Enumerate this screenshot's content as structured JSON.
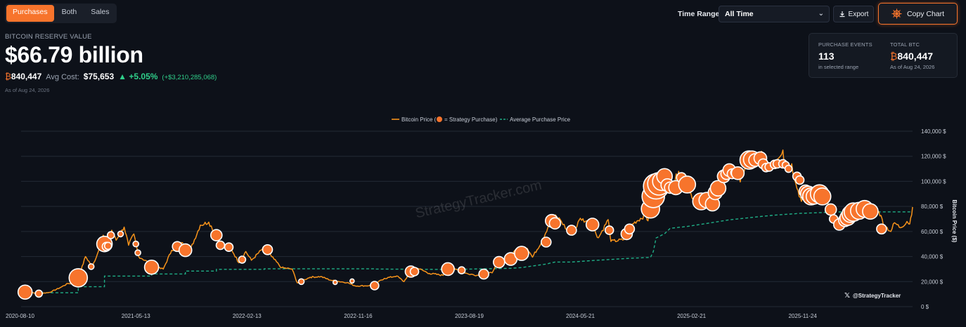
{
  "toggle": {
    "items": [
      "Purchases",
      "Both",
      "Sales"
    ],
    "active": "Purchases"
  },
  "reserve": {
    "label": "BITCOIN RESERVE VALUE",
    "value": "$66.79 billion",
    "btc_symbol": "₿",
    "btc": "840,447",
    "avg_cost_label": "Avg Cost:",
    "avg_cost": "$75,653",
    "change_pct": "▲ +5.05%",
    "change_abs": "(+$3,210,285,068)",
    "as_of": "As of Aug 24, 2026"
  },
  "controls": {
    "time_range_label": "Time Range:",
    "time_range_value": "All Time",
    "export_label": "Export",
    "copy_label": "Copy Chart"
  },
  "stats": {
    "events_label": "PURCHASE EVENTS",
    "events_value": "113",
    "events_sub": "in selected range",
    "total_label": "TOTAL BTC",
    "total_symbol": "₿",
    "total_value": "840,447",
    "total_sub": "As of Aug 24, 2026"
  },
  "colors": {
    "accent": "#f7742c",
    "price_line": "#f7931a",
    "avg_line": "#1fae86",
    "positive": "#2fcf8a"
  },
  "chart_data": {
    "type": "line",
    "legend_price": "Bitcoin Price (",
    "legend_price_tail": "= Strategy Purchase)",
    "legend_avg": "Average Purchase Price",
    "ylabel": "Bitcoin Price ($)",
    "watermark": "StrategyTracker.com",
    "handle": "@StrategyTracker",
    "ylim": [
      0,
      140000
    ],
    "y_ticks": [
      0,
      20000,
      40000,
      60000,
      80000,
      100000,
      120000,
      140000
    ],
    "y_tick_labels": [
      "0 $",
      "20,000 $",
      "40,000 $",
      "60,000 $",
      "80,000 $",
      "100,000 $",
      "120,000 $",
      "140,000 $"
    ],
    "x_range": [
      "2020-08-01",
      "2026-08-24"
    ],
    "x_ticks": [
      "2020-08-10",
      "2021-05-13",
      "2022-02-13",
      "2022-11-16",
      "2023-08-19",
      "2024-05-21",
      "2025-02-21",
      "2025-11-24"
    ],
    "grid": true,
    "price_series": [
      [
        "2020-08-01",
        11500
      ],
      [
        "2020-08-25",
        11200
      ],
      [
        "2020-09-15",
        10500
      ],
      [
        "2020-10-10",
        11300
      ],
      [
        "2020-11-05",
        15000
      ],
      [
        "2020-11-25",
        18500
      ],
      [
        "2020-12-10",
        18300
      ],
      [
        "2020-12-22",
        23500
      ],
      [
        "2021-01-08",
        40000
      ],
      [
        "2021-01-25",
        32000
      ],
      [
        "2021-02-10",
        45000
      ],
      [
        "2021-02-21",
        57000
      ],
      [
        "2021-03-05",
        48000
      ],
      [
        "2021-03-14",
        61000
      ],
      [
        "2021-03-25",
        53000
      ],
      [
        "2021-04-14",
        63500
      ],
      [
        "2021-04-25",
        49000
      ],
      [
        "2021-05-08",
        58000
      ],
      [
        "2021-05-20",
        40000
      ],
      [
        "2021-06-10",
        36000
      ],
      [
        "2021-06-22",
        32000
      ],
      [
        "2021-07-20",
        30000
      ],
      [
        "2021-08-10",
        45000
      ],
      [
        "2021-09-06",
        51000
      ],
      [
        "2021-09-21",
        42000
      ],
      [
        "2021-10-20",
        65000
      ],
      [
        "2021-11-10",
        67500
      ],
      [
        "2021-11-29",
        57000
      ],
      [
        "2021-12-15",
        48000
      ],
      [
        "2022-01-05",
        46000
      ],
      [
        "2022-01-24",
        35000
      ],
      [
        "2022-02-10",
        44000
      ],
      [
        "2022-02-24",
        37000
      ],
      [
        "2022-03-28",
        47500
      ],
      [
        "2022-04-15",
        40000
      ],
      [
        "2022-05-10",
        31000
      ],
      [
        "2022-06-05",
        30000
      ],
      [
        "2022-06-18",
        19000
      ],
      [
        "2022-07-20",
        23500
      ],
      [
        "2022-08-15",
        24000
      ],
      [
        "2022-09-10",
        21000
      ],
      [
        "2022-10-20",
        19200
      ],
      [
        "2022-11-09",
        16500
      ],
      [
        "2022-12-20",
        16800
      ],
      [
        "2023-01-20",
        22500
      ],
      [
        "2023-02-20",
        24500
      ],
      [
        "2023-03-10",
        20000
      ],
      [
        "2023-03-25",
        27500
      ],
      [
        "2023-04-14",
        30500
      ],
      [
        "2023-05-12",
        26500
      ],
      [
        "2023-06-15",
        25000
      ],
      [
        "2023-06-25",
        30500
      ],
      [
        "2023-07-15",
        30000
      ],
      [
        "2023-08-17",
        26000
      ],
      [
        "2023-09-11",
        25000
      ],
      [
        "2023-10-15",
        27000
      ],
      [
        "2023-10-25",
        34500
      ],
      [
        "2023-11-15",
        37000
      ],
      [
        "2023-12-08",
        44000
      ],
      [
        "2024-01-10",
        46500
      ],
      [
        "2024-01-23",
        39500
      ],
      [
        "2024-02-15",
        52000
      ],
      [
        "2024-03-14",
        73000
      ],
      [
        "2024-04-01",
        69500
      ],
      [
        "2024-04-17",
        61500
      ],
      [
        "2024-05-01",
        57000
      ],
      [
        "2024-05-21",
        70500
      ],
      [
        "2024-06-15",
        66000
      ],
      [
        "2024-07-05",
        55000
      ],
      [
        "2024-07-29",
        69500
      ],
      [
        "2024-08-05",
        52000
      ],
      [
        "2024-09-06",
        53500
      ],
      [
        "2024-09-27",
        66000
      ],
      [
        "2024-10-29",
        73000
      ],
      [
        "2024-11-05",
        68500
      ],
      [
        "2024-11-12",
        89000
      ],
      [
        "2024-11-22",
        99000
      ],
      [
        "2024-12-05",
        103000
      ],
      [
        "2024-12-17",
        107000
      ],
      [
        "2024-12-30",
        92000
      ],
      [
        "2025-01-20",
        108000
      ],
      [
        "2025-02-10",
        97000
      ],
      [
        "2025-03-01",
        84000
      ],
      [
        "2025-03-11",
        78500
      ],
      [
        "2025-03-25",
        87500
      ],
      [
        "2025-04-08",
        76500
      ],
      [
        "2025-04-25",
        94000
      ],
      [
        "2025-05-22",
        111000
      ],
      [
        "2025-06-10",
        108000
      ],
      [
        "2025-06-22",
        99500
      ],
      [
        "2025-07-14",
        122000
      ],
      [
        "2025-08-02",
        113000
      ],
      [
        "2025-08-14",
        124000
      ],
      [
        "2025-09-01",
        108000
      ],
      [
        "2025-09-18",
        117000
      ],
      [
        "2025-10-06",
        125000
      ],
      [
        "2025-10-11",
        111000
      ],
      [
        "2025-10-28",
        114000
      ],
      [
        "2025-11-04",
        101000
      ],
      [
        "2025-11-21",
        84000
      ],
      [
        "2025-12-10",
        92000
      ],
      [
        "2025-12-31",
        87500
      ],
      [
        "2026-01-15",
        96500
      ],
      [
        "2026-02-05",
        68000
      ],
      [
        "2026-02-20",
        67000
      ],
      [
        "2026-03-10",
        70000
      ],
      [
        "2026-04-05",
        74000
      ],
      [
        "2026-04-20",
        72000
      ],
      [
        "2026-05-10",
        80000
      ],
      [
        "2026-06-01",
        76000
      ],
      [
        "2026-06-15",
        65000
      ],
      [
        "2026-07-01",
        60000
      ],
      [
        "2026-07-10",
        67000
      ],
      [
        "2026-07-25",
        63000
      ],
      [
        "2026-08-10",
        68000
      ],
      [
        "2026-08-17",
        66000
      ],
      [
        "2026-08-24",
        79500
      ]
    ],
    "avg_purchase_price": [
      [
        "2020-08-01",
        11100
      ],
      [
        "2020-12-21",
        11100
      ],
      [
        "2020-12-21",
        15900
      ],
      [
        "2021-02-24",
        15900
      ],
      [
        "2021-02-24",
        24400
      ],
      [
        "2021-06-21",
        24400
      ],
      [
        "2021-06-21",
        26100
      ],
      [
        "2021-09-13",
        26100
      ],
      [
        "2021-09-13",
        28400
      ],
      [
        "2021-11-29",
        28400
      ],
      [
        "2021-11-29",
        29800
      ],
      [
        "2022-03-28",
        29800
      ],
      [
        "2022-03-28",
        30200
      ],
      [
        "2022-12-28",
        30200
      ],
      [
        "2022-12-28",
        30000
      ],
      [
        "2023-06-28",
        29700
      ],
      [
        "2023-11-30",
        30600
      ],
      [
        "2023-12-27",
        31200
      ],
      [
        "2024-02-26",
        34000
      ],
      [
        "2024-03-19",
        35600
      ],
      [
        "2024-04-30",
        35600
      ],
      [
        "2024-06-20",
        36800
      ],
      [
        "2024-09-20",
        38600
      ],
      [
        "2024-11-11",
        39300
      ],
      [
        "2024-11-18",
        43900
      ],
      [
        "2024-11-25",
        54800
      ],
      [
        "2024-12-16",
        58200
      ],
      [
        "2024-12-30",
        62500
      ],
      [
        "2025-02-10",
        64000
      ],
      [
        "2025-03-31",
        66400
      ],
      [
        "2025-05-26",
        69300
      ],
      [
        "2025-07-29",
        71500
      ],
      [
        "2025-09-15",
        73000
      ],
      [
        "2025-11-17",
        74400
      ],
      [
        "2026-01-12",
        75100
      ],
      [
        "2026-02-09",
        75600
      ],
      [
        "2026-08-24",
        75653
      ]
    ],
    "purchases": [
      [
        "2020-08-11",
        11600,
        10
      ],
      [
        "2020-09-14",
        10400,
        5
      ],
      [
        "2020-12-21",
        23000,
        13
      ],
      [
        "2021-01-22",
        32000,
        4
      ],
      [
        "2021-02-24",
        50000,
        11
      ],
      [
        "2021-03-01",
        48000,
        6
      ],
      [
        "2021-03-05",
        48500,
        5
      ],
      [
        "2021-03-12",
        57000,
        5
      ],
      [
        "2021-04-05",
        58000,
        4
      ],
      [
        "2021-05-13",
        50000,
        4
      ],
      [
        "2021-05-18",
        43000,
        4
      ],
      [
        "2021-06-21",
        31500,
        10
      ],
      [
        "2021-08-24",
        48000,
        7
      ],
      [
        "2021-09-13",
        45000,
        9
      ],
      [
        "2021-11-29",
        57000,
        8
      ],
      [
        "2021-12-09",
        49000,
        6
      ],
      [
        "2021-12-30",
        47500,
        6
      ],
      [
        "2022-02-01",
        37500,
        5
      ],
      [
        "2022-04-05",
        45500,
        7
      ],
      [
        "2022-06-28",
        20000,
        4
      ],
      [
        "2022-09-20",
        19400,
        3
      ],
      [
        "2022-11-01",
        20500,
        3
      ],
      [
        "2022-12-27",
        16800,
        6
      ],
      [
        "2023-03-27",
        28000,
        8
      ],
      [
        "2023-04-05",
        28000,
        6
      ],
      [
        "2023-06-27",
        30000,
        9
      ],
      [
        "2023-07-31",
        29000,
        5
      ],
      [
        "2023-09-24",
        26000,
        7
      ],
      [
        "2023-11-01",
        35500,
        8
      ],
      [
        "2023-11-30",
        38000,
        9
      ],
      [
        "2023-12-27",
        42500,
        10
      ],
      [
        "2024-02-26",
        51500,
        7
      ],
      [
        "2024-03-11",
        68500,
        9
      ],
      [
        "2024-03-19",
        66500,
        8
      ],
      [
        "2024-04-29",
        61000,
        7
      ],
      [
        "2024-06-20",
        65500,
        9
      ],
      [
        "2024-08-01",
        61000,
        6
      ],
      [
        "2024-09-13",
        58000,
        8
      ],
      [
        "2024-09-20",
        62000,
        7
      ],
      [
        "2024-11-11",
        78000,
        13
      ],
      [
        "2024-11-18",
        88000,
        16
      ],
      [
        "2024-11-25",
        96000,
        18
      ],
      [
        "2024-12-02",
        98000,
        16
      ],
      [
        "2024-12-09",
        100000,
        13
      ],
      [
        "2024-12-16",
        104000,
        11
      ],
      [
        "2024-12-23",
        97000,
        9
      ],
      [
        "2024-12-30",
        95000,
        8
      ],
      [
        "2025-01-13",
        95000,
        10
      ],
      [
        "2025-01-27",
        103000,
        7
      ],
      [
        "2025-02-10",
        97500,
        12
      ],
      [
        "2025-03-17",
        84000,
        12
      ],
      [
        "2025-03-31",
        85000,
        11
      ],
      [
        "2025-04-14",
        82000,
        10
      ],
      [
        "2025-04-21",
        91000,
        10
      ],
      [
        "2025-04-28",
        94500,
        11
      ],
      [
        "2025-05-12",
        104000,
        9
      ],
      [
        "2025-05-19",
        106000,
        8
      ],
      [
        "2025-05-26",
        109000,
        9
      ],
      [
        "2025-06-02",
        106000,
        7
      ],
      [
        "2025-06-09",
        107000,
        6
      ],
      [
        "2025-06-16",
        106500,
        9
      ],
      [
        "2025-07-14",
        117000,
        13
      ],
      [
        "2025-07-21",
        117500,
        12
      ],
      [
        "2025-07-29",
        117000,
        9
      ],
      [
        "2025-08-11",
        118500,
        9
      ],
      [
        "2025-08-18",
        114000,
        7
      ],
      [
        "2025-08-25",
        111000,
        6
      ],
      [
        "2025-09-02",
        111500,
        6
      ],
      [
        "2025-09-15",
        113500,
        6
      ],
      [
        "2025-09-22",
        114000,
        6
      ],
      [
        "2025-10-06",
        114000,
        6
      ],
      [
        "2025-10-13",
        113000,
        5
      ],
      [
        "2025-10-20",
        110000,
        5
      ],
      [
        "2025-11-10",
        104000,
        6
      ],
      [
        "2025-11-17",
        101000,
        6
      ],
      [
        "2025-12-01",
        92000,
        9
      ],
      [
        "2025-12-08",
        90000,
        11
      ],
      [
        "2025-12-15",
        88000,
        12
      ],
      [
        "2025-12-22",
        88000,
        11
      ],
      [
        "2026-01-05",
        90000,
        13
      ],
      [
        "2026-01-12",
        88000,
        12
      ],
      [
        "2026-02-02",
        77500,
        8
      ],
      [
        "2026-02-09",
        70000,
        6
      ],
      [
        "2026-02-23",
        65500,
        8
      ],
      [
        "2026-03-09",
        69000,
        9
      ],
      [
        "2026-03-16",
        71000,
        11
      ],
      [
        "2026-03-23",
        74000,
        12
      ],
      [
        "2026-03-30",
        75500,
        13
      ],
      [
        "2026-04-13",
        76500,
        12
      ],
      [
        "2026-04-27",
        78000,
        12
      ],
      [
        "2026-05-11",
        76000,
        11
      ],
      [
        "2026-06-08",
        62000,
        7
      ]
    ]
  }
}
